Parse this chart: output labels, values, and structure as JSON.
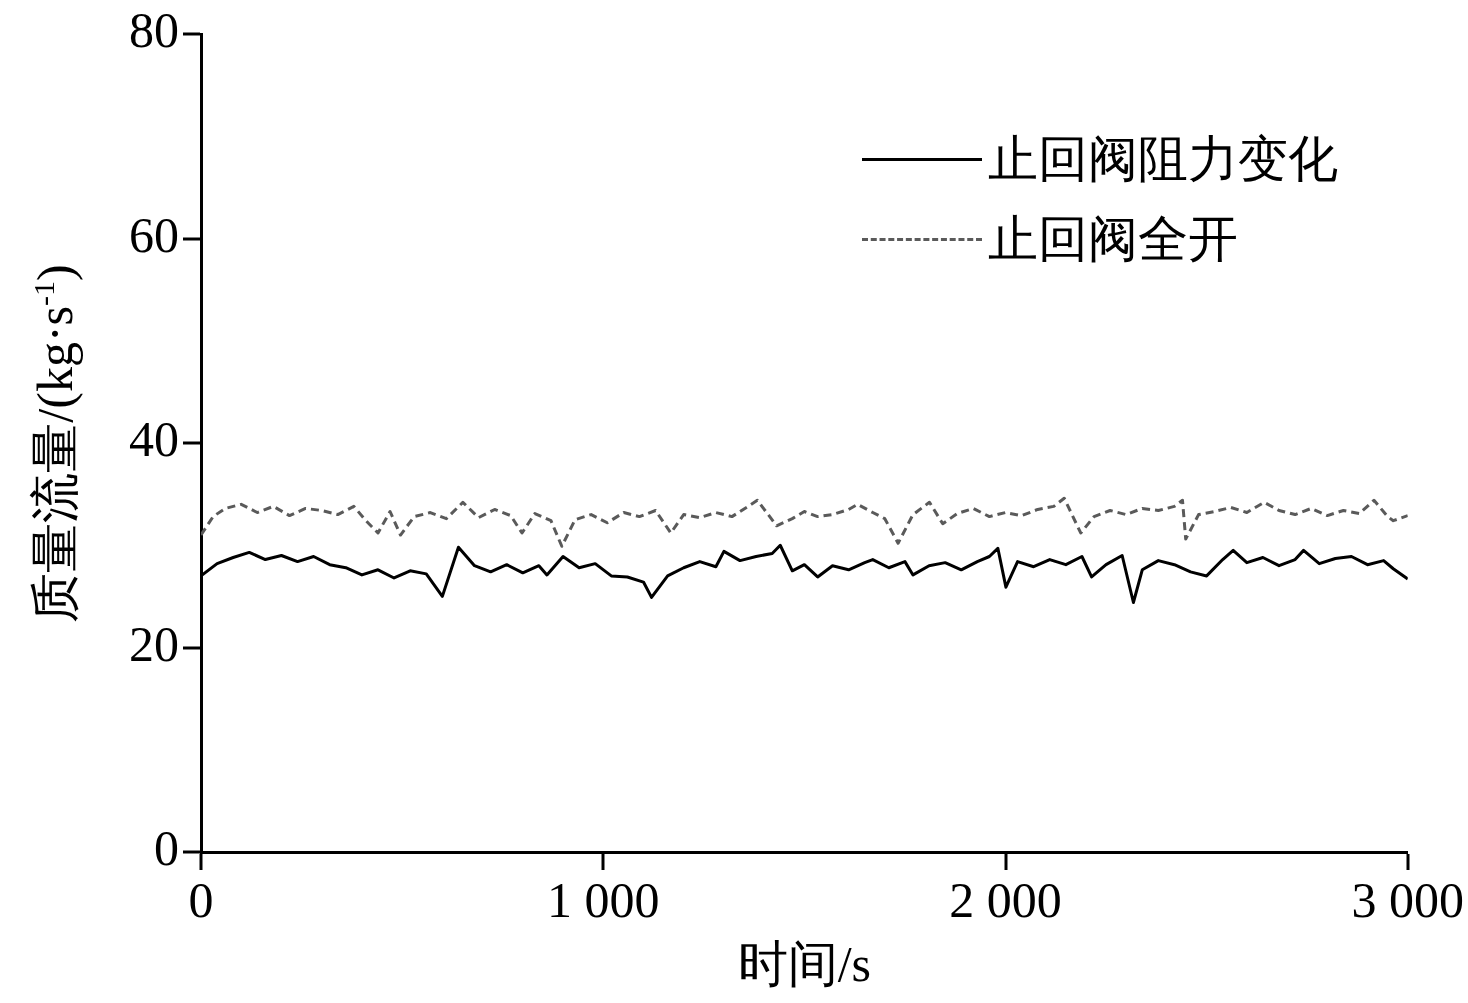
{
  "chart_data": {
    "type": "line",
    "xlabel": "时间/s",
    "ylabel": "质量流量/(kg·s$^{-1}$)",
    "xlim": [
      0,
      3000
    ],
    "xticks": [
      0,
      {
        "value": 1000,
        "label": "1 000"
      },
      {
        "value": 2000,
        "label": "2 000"
      },
      {
        "value": 3000,
        "label": "3 000"
      }
    ],
    "ylim": [
      0,
      80
    ],
    "yticks": [
      0,
      20,
      40,
      60,
      80
    ],
    "grid": false,
    "legend": "top right",
    "marker": "none",
    "series": [
      {
        "name": "止回阀阻力变化",
        "color": "#000000",
        "line_style": "solid",
        "x": [
          0,
          40,
          80,
          120,
          160,
          200,
          240,
          280,
          320,
          360,
          400,
          440,
          480,
          520,
          560,
          600,
          640,
          680,
          720,
          760,
          800,
          840,
          860,
          900,
          940,
          980,
          1020,
          1060,
          1100,
          1120,
          1160,
          1200,
          1240,
          1280,
          1300,
          1340,
          1380,
          1420,
          1440,
          1470,
          1500,
          1533,
          1570,
          1610,
          1650,
          1670,
          1710,
          1750,
          1770,
          1810,
          1850,
          1890,
          1930,
          1960,
          1981,
          2001,
          2030,
          2070,
          2110,
          2150,
          2190,
          2214,
          2250,
          2290,
          2318,
          2340,
          2380,
          2420,
          2460,
          2500,
          2540,
          2566,
          2600,
          2640,
          2680,
          2720,
          2741,
          2780,
          2820,
          2860,
          2900,
          2940,
          2964,
          3000
        ],
        "values": [
          27.0,
          28.2,
          28.8,
          29.3,
          28.6,
          29.0,
          28.4,
          28.9,
          28.1,
          27.8,
          27.1,
          27.6,
          26.8,
          27.5,
          27.2,
          25.0,
          29.8,
          28.0,
          27.4,
          28.1,
          27.3,
          28.0,
          27.1,
          28.9,
          27.8,
          28.2,
          27.0,
          26.9,
          26.4,
          24.9,
          27.0,
          27.8,
          28.4,
          27.9,
          29.4,
          28.5,
          28.9,
          29.2,
          30.0,
          27.5,
          28.1,
          26.9,
          28.0,
          27.6,
          28.3,
          28.6,
          27.8,
          28.4,
          27.1,
          28.0,
          28.3,
          27.6,
          28.4,
          28.9,
          29.7,
          25.9,
          28.4,
          27.9,
          28.6,
          28.1,
          28.9,
          26.9,
          28.1,
          29.0,
          24.4,
          27.6,
          28.5,
          28.1,
          27.4,
          27.0,
          28.6,
          29.5,
          28.3,
          28.8,
          28.0,
          28.6,
          29.5,
          28.2,
          28.7,
          28.9,
          28.1,
          28.5,
          27.7,
          26.7
        ]
      },
      {
        "name": "止回阀全开",
        "color": "#5a5a5a",
        "line_style": "dashed",
        "x": [
          0,
          30,
          60,
          100,
          140,
          180,
          220,
          260,
          300,
          340,
          380,
          410,
          440,
          470,
          496,
          530,
          570,
          610,
          651,
          690,
          730,
          770,
          798,
          830,
          870,
          897,
          930,
          970,
          1010,
          1051,
          1090,
          1130,
          1168,
          1200,
          1240,
          1280,
          1320,
          1360,
          1383,
          1410,
          1431,
          1470,
          1500,
          1533,
          1570,
          1610,
          1632,
          1670,
          1700,
          1733,
          1770,
          1811,
          1844,
          1880,
          1920,
          1960,
          2000,
          2040,
          2080,
          2120,
          2146,
          2187,
          2220,
          2260,
          2300,
          2340,
          2380,
          2420,
          2440,
          2448,
          2480,
          2520,
          2560,
          2600,
          2643,
          2680,
          2720,
          2760,
          2800,
          2840,
          2880,
          2916,
          2950,
          2964,
          3000
        ],
        "values": [
          31.0,
          32.8,
          33.6,
          34.0,
          33.2,
          33.8,
          32.9,
          33.6,
          33.4,
          33.0,
          33.8,
          32.4,
          31.2,
          33.3,
          31.0,
          32.8,
          33.2,
          32.6,
          34.2,
          32.7,
          33.5,
          32.9,
          31.2,
          33.1,
          32.4,
          29.9,
          32.5,
          33.0,
          32.2,
          33.2,
          32.8,
          33.4,
          31.2,
          33.0,
          32.7,
          33.2,
          32.8,
          33.8,
          34.4,
          33.0,
          31.9,
          32.6,
          33.3,
          32.8,
          33.0,
          33.5,
          34.0,
          33.2,
          32.6,
          30.2,
          33.0,
          34.2,
          32.1,
          33.1,
          33.6,
          32.8,
          33.2,
          32.9,
          33.5,
          33.8,
          34.6,
          31.2,
          32.8,
          33.4,
          33.0,
          33.6,
          33.4,
          33.8,
          34.4,
          30.6,
          33.0,
          33.3,
          33.7,
          33.2,
          34.2,
          33.4,
          33.0,
          33.6,
          32.9,
          33.4,
          33.1,
          34.4,
          32.8,
          32.4,
          32.9
        ]
      }
    ]
  }
}
